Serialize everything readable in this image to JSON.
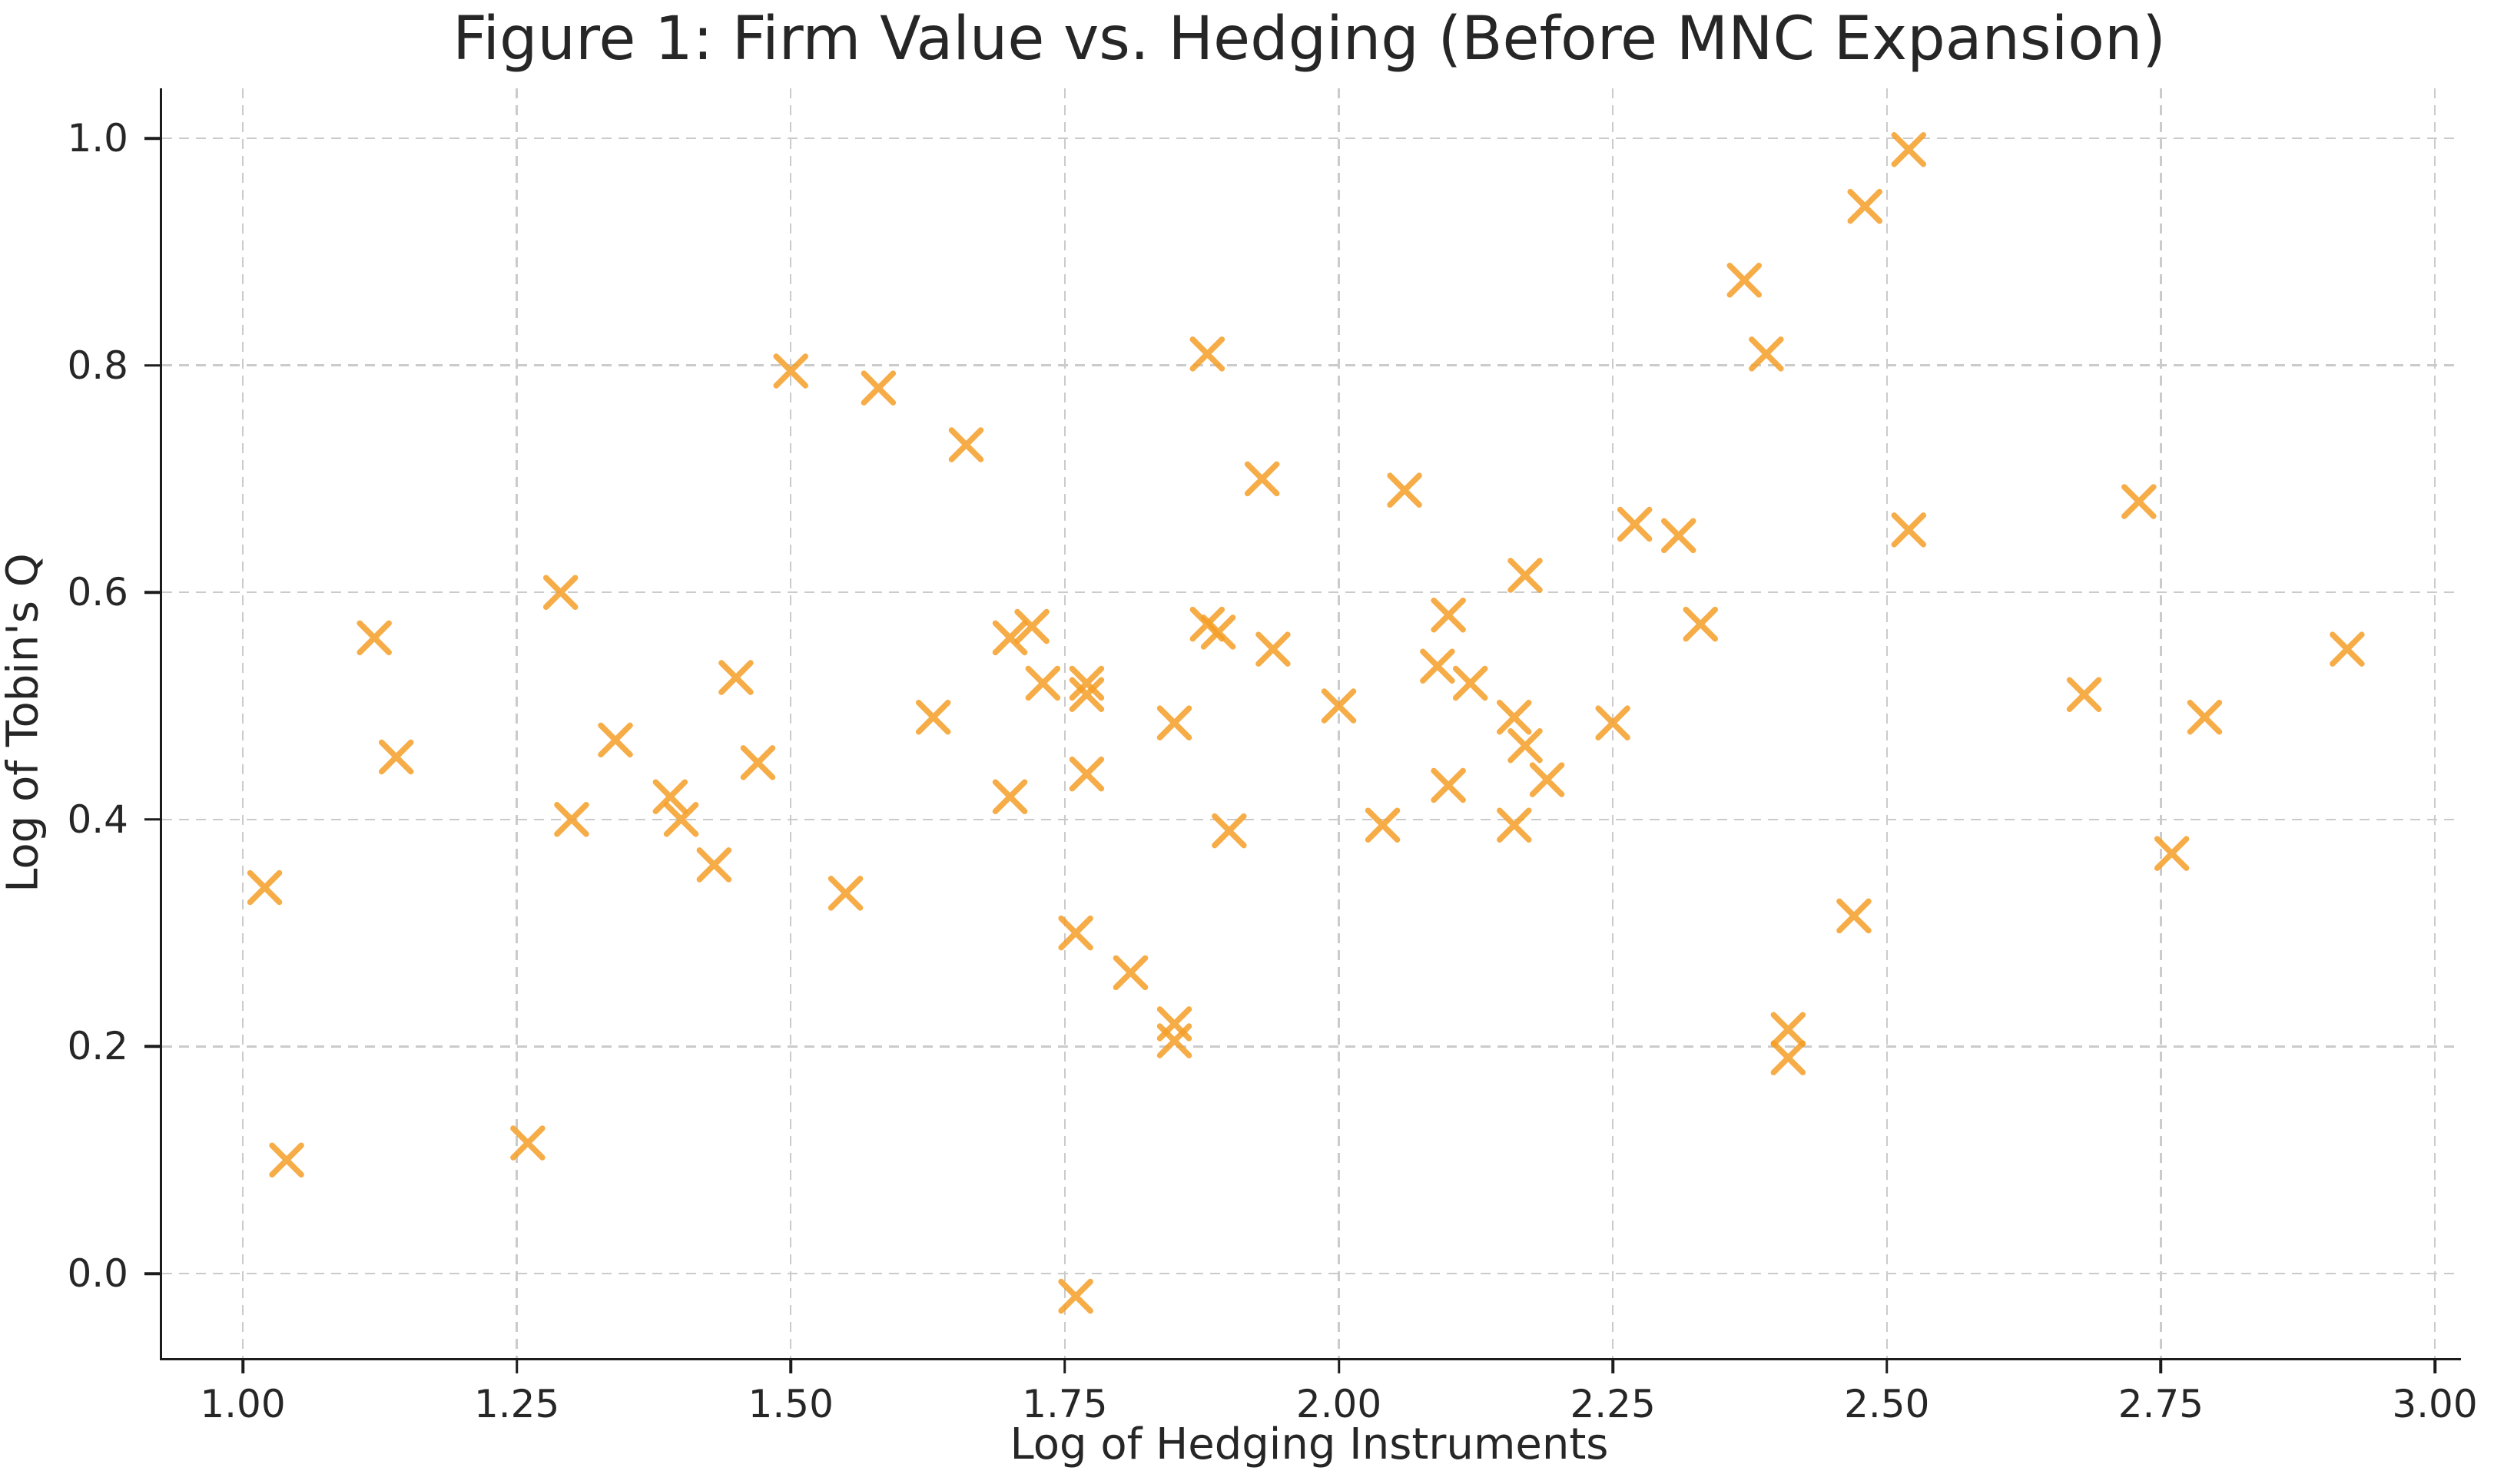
{
  "chart_data": {
    "type": "scatter",
    "title": "Figure 1: Firm Value vs. Hedging (Before MNC Expansion)",
    "xlabel": "Log of Hedging Instruments",
    "ylabel": "Log of Tobin's Q",
    "xlim": [
      0.926,
      3.024
    ],
    "ylim": [
      -0.074,
      1.044
    ],
    "x_ticks": [
      1.0,
      1.25,
      1.5,
      1.75,
      2.0,
      2.25,
      2.5,
      2.75,
      3.0
    ],
    "x_tick_labels": [
      "1.00",
      "1.25",
      "1.50",
      "1.75",
      "2.00",
      "2.25",
      "2.50",
      "2.75",
      "3.00"
    ],
    "y_ticks": [
      0.0,
      0.2,
      0.4,
      0.6,
      0.8,
      1.0
    ],
    "y_tick_labels": [
      "0.0",
      "0.2",
      "0.4",
      "0.6",
      "0.8",
      "1.0"
    ],
    "grid": true,
    "grid_style": "dashed",
    "legend": false,
    "marker": {
      "shape": "x",
      "color": "#F59E27",
      "opacity": 0.85,
      "size": 38,
      "stroke_width": 7.5
    },
    "series": [
      {
        "name": "firms",
        "points": [
          [
            1.02,
            0.34
          ],
          [
            1.04,
            0.1
          ],
          [
            1.12,
            0.56
          ],
          [
            1.14,
            0.455
          ],
          [
            1.26,
            0.115
          ],
          [
            1.29,
            0.6
          ],
          [
            1.3,
            0.4
          ],
          [
            1.34,
            0.47
          ],
          [
            1.39,
            0.42
          ],
          [
            1.4,
            0.4
          ],
          [
            1.43,
            0.36
          ],
          [
            1.45,
            0.525
          ],
          [
            1.47,
            0.45
          ],
          [
            1.5,
            0.795
          ],
          [
            1.55,
            0.335
          ],
          [
            1.58,
            0.78
          ],
          [
            1.63,
            0.49
          ],
          [
            1.66,
            0.73
          ],
          [
            1.7,
            0.56
          ],
          [
            1.7,
            0.42
          ],
          [
            1.72,
            0.57
          ],
          [
            1.73,
            0.52
          ],
          [
            1.76,
            0.3
          ],
          [
            1.76,
            -0.02
          ],
          [
            1.77,
            0.52
          ],
          [
            1.77,
            0.51
          ],
          [
            1.77,
            0.44
          ],
          [
            1.81,
            0.265
          ],
          [
            1.85,
            0.485
          ],
          [
            1.85,
            0.22
          ],
          [
            1.85,
            0.205
          ],
          [
            1.88,
            0.81
          ],
          [
            1.88,
            0.572
          ],
          [
            1.89,
            0.565
          ],
          [
            1.9,
            0.39
          ],
          [
            1.93,
            0.7
          ],
          [
            1.94,
            0.55
          ],
          [
            2.0,
            0.5
          ],
          [
            2.04,
            0.395
          ],
          [
            2.06,
            0.69
          ],
          [
            2.09,
            0.535
          ],
          [
            2.1,
            0.58
          ],
          [
            2.1,
            0.43
          ],
          [
            2.12,
            0.52
          ],
          [
            2.16,
            0.49
          ],
          [
            2.16,
            0.395
          ],
          [
            2.17,
            0.615
          ],
          [
            2.17,
            0.465
          ],
          [
            2.19,
            0.435
          ],
          [
            2.25,
            0.485
          ],
          [
            2.27,
            0.66
          ],
          [
            2.31,
            0.65
          ],
          [
            2.33,
            0.572
          ],
          [
            2.37,
            0.875
          ],
          [
            2.39,
            0.81
          ],
          [
            2.41,
            0.215
          ],
          [
            2.41,
            0.19
          ],
          [
            2.47,
            0.315
          ],
          [
            2.48,
            0.94
          ],
          [
            2.52,
            0.99
          ],
          [
            2.52,
            0.655
          ],
          [
            2.68,
            0.51
          ],
          [
            2.73,
            0.68
          ],
          [
            2.76,
            0.37
          ],
          [
            2.79,
            0.49
          ],
          [
            2.92,
            0.55
          ]
        ]
      }
    ],
    "colors": {
      "marker": "#F59E27",
      "grid": "#cbcbcb",
      "spine": "#1c1c1c",
      "text": "#262626",
      "background": "#ffffff"
    }
  }
}
